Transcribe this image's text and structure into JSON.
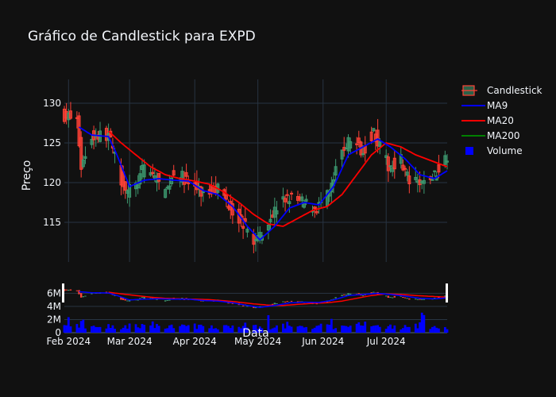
{
  "chart_data": {
    "type": "candlestick",
    "title": "Gráfico de Candlestick para EXPD",
    "ylabel": "Preço",
    "xlabel": "Data",
    "ylim": [
      110,
      133
    ],
    "volume_ylim": [
      0,
      7500000
    ],
    "volume_tick_labels": [
      "0",
      "2M",
      "4M",
      "6M"
    ],
    "y_ticks": [
      115,
      120,
      125,
      130
    ],
    "x_start": "2024-01-30",
    "x_end": "2024-07-30",
    "x_ticks": [
      {
        "date": "2024-02-01",
        "label": "Feb 2024"
      },
      {
        "date": "2024-03-01",
        "label": "Mar 2024"
      },
      {
        "date": "2024-04-01",
        "label": "Apr 2024"
      },
      {
        "date": "2024-05-01",
        "label": "May 2024"
      },
      {
        "date": "2024-06-01",
        "label": "Jun 2024"
      },
      {
        "date": "2024-07-01",
        "label": "Jul 2024"
      }
    ],
    "legend": [
      {
        "name": "Candlestick",
        "color": "#3d9970",
        "color2": "#ff4136"
      },
      {
        "name": "MA9",
        "color": "#0000ff"
      },
      {
        "name": "MA20",
        "color": "#ff0000"
      },
      {
        "name": "MA200",
        "color": "#008000"
      },
      {
        "name": "Volume",
        "color": "#0000ff"
      }
    ],
    "colors": {
      "increasing": "#3d9970",
      "decreasing": "#ff4136",
      "ma9": "#0000ff",
      "ma20": "#ff0000",
      "volume": "#0000ff"
    },
    "close_anchors": [
      {
        "date": "2024-01-30",
        "close": 128.5
      },
      {
        "date": "2024-02-05",
        "close": 127.8
      },
      {
        "date": "2024-02-07",
        "close": 122.0
      },
      {
        "date": "2024-02-12",
        "close": 125.8
      },
      {
        "date": "2024-02-20",
        "close": 126.0
      },
      {
        "date": "2024-02-26",
        "close": 120.5
      },
      {
        "date": "2024-02-29",
        "close": 119.0
      },
      {
        "date": "2024-03-04",
        "close": 119.5
      },
      {
        "date": "2024-03-08",
        "close": 122.0
      },
      {
        "date": "2024-03-13",
        "close": 120.8
      },
      {
        "date": "2024-03-18",
        "close": 118.5
      },
      {
        "date": "2024-03-22",
        "close": 121.5
      },
      {
        "date": "2024-03-29",
        "close": 120.0
      },
      {
        "date": "2024-04-05",
        "close": 118.5
      },
      {
        "date": "2024-04-12",
        "close": 119.5
      },
      {
        "date": "2024-04-18",
        "close": 117.0
      },
      {
        "date": "2024-04-24",
        "close": 114.8
      },
      {
        "date": "2024-04-30",
        "close": 112.5
      },
      {
        "date": "2024-05-03",
        "close": 114.0
      },
      {
        "date": "2024-05-09",
        "close": 116.5
      },
      {
        "date": "2024-05-15",
        "close": 118.2
      },
      {
        "date": "2024-05-22",
        "close": 117.5
      },
      {
        "date": "2024-05-29",
        "close": 116.8
      },
      {
        "date": "2024-06-04",
        "close": 118.5
      },
      {
        "date": "2024-06-10",
        "close": 124.0
      },
      {
        "date": "2024-06-14",
        "close": 125.5
      },
      {
        "date": "2024-06-20",
        "close": 124.0
      },
      {
        "date": "2024-06-25",
        "close": 126.5
      },
      {
        "date": "2024-06-28",
        "close": 124.5
      },
      {
        "date": "2024-07-02",
        "close": 122.0
      },
      {
        "date": "2024-07-08",
        "close": 123.0
      },
      {
        "date": "2024-07-12",
        "close": 120.0
      },
      {
        "date": "2024-07-18",
        "close": 119.8
      },
      {
        "date": "2024-07-24",
        "close": 121.0
      },
      {
        "date": "2024-07-30",
        "close": 123.5
      }
    ],
    "ma9_anchors": [
      {
        "date": "2024-02-06",
        "value": 127.0
      },
      {
        "date": "2024-02-12",
        "value": 126.0
      },
      {
        "date": "2024-02-20",
        "value": 125.8
      },
      {
        "date": "2024-02-24",
        "value": 123.5
      },
      {
        "date": "2024-03-01",
        "value": 119.5
      },
      {
        "date": "2024-03-08",
        "value": 120.3
      },
      {
        "date": "2024-03-15",
        "value": 120.5
      },
      {
        "date": "2024-03-22",
        "value": 120.3
      },
      {
        "date": "2024-03-29",
        "value": 120.2
      },
      {
        "date": "2024-04-05",
        "value": 119.0
      },
      {
        "date": "2024-04-12",
        "value": 118.5
      },
      {
        "date": "2024-04-19",
        "value": 117.0
      },
      {
        "date": "2024-04-26",
        "value": 114.5
      },
      {
        "date": "2024-05-02",
        "value": 112.8
      },
      {
        "date": "2024-05-09",
        "value": 114.5
      },
      {
        "date": "2024-05-16",
        "value": 116.8
      },
      {
        "date": "2024-05-23",
        "value": 117.5
      },
      {
        "date": "2024-05-30",
        "value": 117.2
      },
      {
        "date": "2024-06-06",
        "value": 119.5
      },
      {
        "date": "2024-06-13",
        "value": 123.5
      },
      {
        "date": "2024-06-20",
        "value": 124.5
      },
      {
        "date": "2024-06-27",
        "value": 125.5
      },
      {
        "date": "2024-07-03",
        "value": 124.5
      },
      {
        "date": "2024-07-10",
        "value": 123.0
      },
      {
        "date": "2024-07-17",
        "value": 121.0
      },
      {
        "date": "2024-07-24",
        "value": 120.5
      },
      {
        "date": "2024-07-30",
        "value": 121.5
      }
    ],
    "ma20_anchors": [
      {
        "date": "2024-02-20",
        "value": 126.5
      },
      {
        "date": "2024-02-26",
        "value": 125.0
      },
      {
        "date": "2024-03-04",
        "value": 123.5
      },
      {
        "date": "2024-03-11",
        "value": 122.0
      },
      {
        "date": "2024-03-18",
        "value": 121.0
      },
      {
        "date": "2024-03-25",
        "value": 120.5
      },
      {
        "date": "2024-04-01",
        "value": 120.2
      },
      {
        "date": "2024-04-08",
        "value": 119.8
      },
      {
        "date": "2024-04-15",
        "value": 118.8
      },
      {
        "date": "2024-04-22",
        "value": 117.5
      },
      {
        "date": "2024-04-29",
        "value": 116.0
      },
      {
        "date": "2024-05-06",
        "value": 114.8
      },
      {
        "date": "2024-05-13",
        "value": 114.5
      },
      {
        "date": "2024-05-20",
        "value": 115.5
      },
      {
        "date": "2024-05-27",
        "value": 116.5
      },
      {
        "date": "2024-06-03",
        "value": 117.0
      },
      {
        "date": "2024-06-10",
        "value": 118.5
      },
      {
        "date": "2024-06-17",
        "value": 121.0
      },
      {
        "date": "2024-06-24",
        "value": 123.5
      },
      {
        "date": "2024-07-01",
        "value": 125.0
      },
      {
        "date": "2024-07-08",
        "value": 124.5
      },
      {
        "date": "2024-07-15",
        "value": 123.5
      },
      {
        "date": "2024-07-22",
        "value": 122.8
      },
      {
        "date": "2024-07-30",
        "value": 122.0
      }
    ]
  }
}
